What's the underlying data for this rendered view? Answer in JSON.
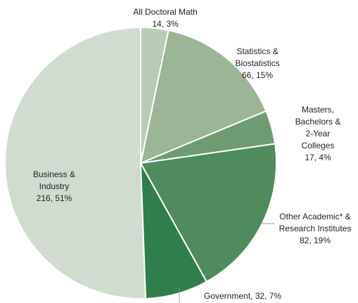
{
  "chart_data": {
    "type": "pie",
    "categories": [
      "All Doctoral Math",
      "Statistics & Biostatistics",
      "Masters, Bachelors & 2-Year Colleges",
      "Other Academic* & Research Institutes",
      "Government",
      "Business & Industry"
    ],
    "values": [
      14,
      66,
      17,
      82,
      32,
      216
    ],
    "value_labels": [
      "14, 3%",
      "66, 15%",
      "17, 4%",
      "82, 19%",
      ", 32, 7%",
      "216, 51%"
    ],
    "colors": [
      "#b8ccb5",
      "#9bb596",
      "#6f9b72",
      "#4f8b5d",
      "#2f7e4b",
      "#d0dccf"
    ]
  }
}
